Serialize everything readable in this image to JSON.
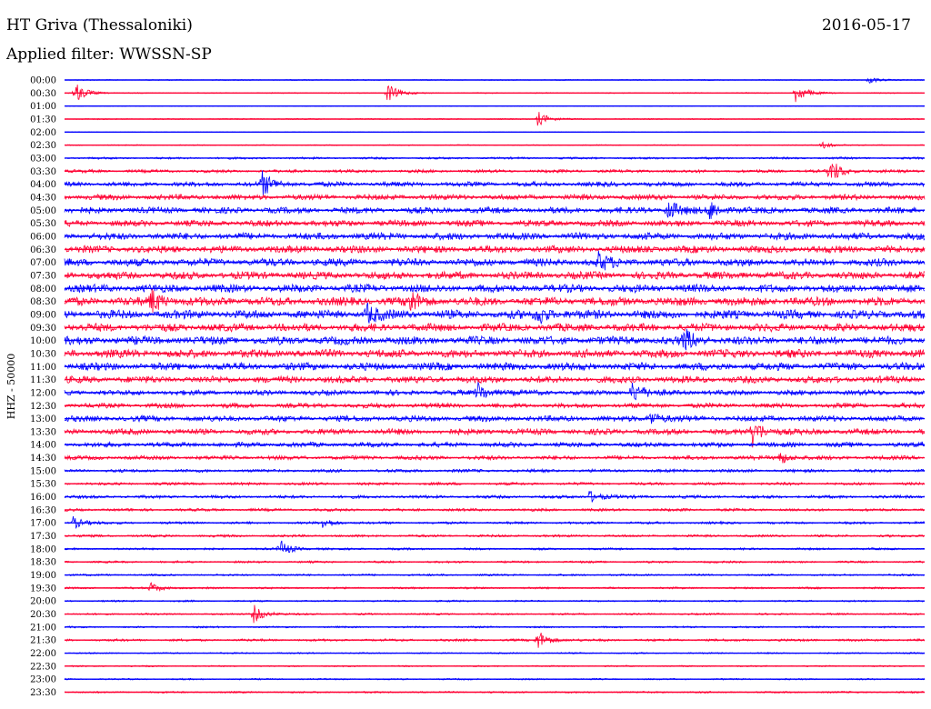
{
  "header": {
    "station": "HT Griva (Thessaloniki)",
    "date": "2016-05-17",
    "filter": "Applied filter: WWSSN-SP"
  },
  "chart_data": {
    "type": "line",
    "title": "HT Griva (Thessaloniki)",
    "ylabel": "HHZ - 50000",
    "xlabel": "",
    "colors": [
      "#0000ff",
      "#ff0033"
    ],
    "grid": false,
    "tick_labels": [
      "00:00",
      "00:30",
      "01:00",
      "01:30",
      "02:00",
      "02:30",
      "03:00",
      "03:30",
      "04:00",
      "04:30",
      "05:00",
      "05:30",
      "06:00",
      "06:30",
      "07:00",
      "07:30",
      "08:00",
      "08:30",
      "09:00",
      "09:30",
      "10:00",
      "10:30",
      "11:00",
      "11:30",
      "12:00",
      "12:30",
      "13:00",
      "13:30",
      "14:00",
      "14:30",
      "15:00",
      "15:30",
      "16:00",
      "16:30",
      "17:00",
      "17:30",
      "18:00",
      "18:30",
      "19:00",
      "19:30",
      "20:00",
      "20:30",
      "21:00",
      "21:30",
      "22:00",
      "22:30",
      "23:00",
      "23:30"
    ],
    "noise_level": [
      0.5,
      0.6,
      0.4,
      0.6,
      0.4,
      0.6,
      1.2,
      1.8,
      2.8,
      3.2,
      3.6,
      3.6,
      4.0,
      4.2,
      4.4,
      4.4,
      4.6,
      5.0,
      5.0,
      4.6,
      4.8,
      4.8,
      4.4,
      4.0,
      3.0,
      2.8,
      3.4,
      3.4,
      2.8,
      2.4,
      1.8,
      1.6,
      1.8,
      1.6,
      1.4,
      1.4,
      1.2,
      1.2,
      1.1,
      1.1,
      1.0,
      1.0,
      1.0,
      1.4,
      0.8,
      0.8,
      0.9,
      1.0
    ],
    "events": [
      {
        "trace": 0,
        "t": 0.935,
        "amp": 4
      },
      {
        "trace": 1,
        "t": 0.012,
        "amp": 12
      },
      {
        "trace": 1,
        "t": 0.375,
        "amp": 11
      },
      {
        "trace": 1,
        "t": 0.85,
        "amp": 11
      },
      {
        "trace": 3,
        "t": 0.55,
        "amp": 9
      },
      {
        "trace": 5,
        "t": 0.88,
        "amp": 4
      },
      {
        "trace": 7,
        "t": 0.89,
        "amp": 14
      },
      {
        "trace": 8,
        "t": 0.23,
        "amp": 13
      },
      {
        "trace": 10,
        "t": 0.7,
        "amp": 13
      },
      {
        "trace": 10,
        "t": 0.75,
        "amp": 11
      },
      {
        "trace": 14,
        "t": 0.62,
        "amp": 10
      },
      {
        "trace": 17,
        "t": 0.1,
        "amp": 14
      },
      {
        "trace": 17,
        "t": 0.4,
        "amp": 13
      },
      {
        "trace": 18,
        "t": 0.35,
        "amp": 12
      },
      {
        "trace": 18,
        "t": 0.55,
        "amp": 11
      },
      {
        "trace": 20,
        "t": 0.72,
        "amp": 12
      },
      {
        "trace": 24,
        "t": 0.48,
        "amp": 11
      },
      {
        "trace": 24,
        "t": 0.66,
        "amp": 13
      },
      {
        "trace": 26,
        "t": 0.68,
        "amp": 9
      },
      {
        "trace": 27,
        "t": 0.8,
        "amp": 15
      },
      {
        "trace": 29,
        "t": 0.83,
        "amp": 8
      },
      {
        "trace": 32,
        "t": 0.61,
        "amp": 7
      },
      {
        "trace": 34,
        "t": 0.01,
        "amp": 7
      },
      {
        "trace": 34,
        "t": 0.3,
        "amp": 6
      },
      {
        "trace": 36,
        "t": 0.25,
        "amp": 10
      },
      {
        "trace": 39,
        "t": 0.1,
        "amp": 6
      },
      {
        "trace": 41,
        "t": 0.22,
        "amp": 10
      },
      {
        "trace": 43,
        "t": 0.55,
        "amp": 11
      }
    ]
  }
}
